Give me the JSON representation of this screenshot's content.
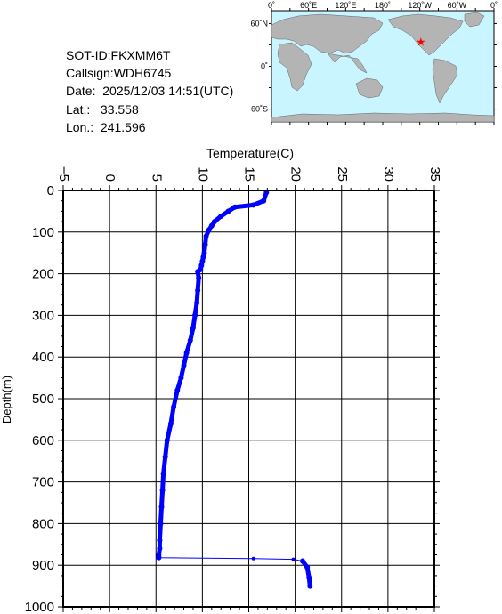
{
  "info": {
    "sot_id": "SOT-ID:FKXMM6T",
    "callsign": "Callsign:WDH6745",
    "date": "Date:  2025/12/03 14:51(UTC)",
    "lat": "Lat.:   33.558",
    "lon": "Lon.:  241.596"
  },
  "map": {
    "lon_ticks": [
      "0˚",
      "60˚E",
      "120˚E",
      "180˚",
      "120˚W",
      "60˚W",
      "0˚"
    ],
    "lat_ticks": [
      "60˚N",
      "0˚",
      "60˚S"
    ],
    "ocean_color": "#c8f5ff",
    "land_color": "#b4b4b4",
    "marker_color": "#ff0000",
    "marker_lat": 33.558,
    "marker_lon": 241.596
  },
  "chart_data": {
    "type": "line",
    "title": "",
    "xlabel": "Temperature(C)",
    "ylabel": "Depth(m)",
    "xlim": [
      -5,
      35
    ],
    "ylim": [
      1000,
      0
    ],
    "x_ticks": [
      -5,
      0,
      5,
      10,
      15,
      20,
      25,
      30,
      35
    ],
    "y_ticks": [
      0,
      100,
      200,
      300,
      400,
      500,
      600,
      700,
      800,
      900,
      1000
    ],
    "grid": true,
    "line_color": "#0000ff",
    "series": [
      {
        "x": [
          16.9,
          16.6,
          15.5,
          13.5,
          12.8,
          12.0,
          11.3,
          11.0,
          10.7,
          10.4,
          10.3,
          10.2,
          10.1,
          10.0,
          9.9,
          9.8,
          9.5,
          9.6,
          9.5,
          9.4,
          9.2,
          9.0,
          8.7,
          8.3,
          8.0,
          7.7,
          7.3,
          6.9,
          6.6,
          6.2,
          6.0,
          5.8,
          5.7,
          5.6,
          5.5,
          5.4,
          5.4,
          5.3,
          5.3,
          5.3,
          15.5,
          19.8,
          20.8,
          21.3,
          21.5,
          21.6
        ],
        "y": [
          5,
          25,
          35,
          40,
          50,
          62,
          75,
          85,
          95,
          110,
          130,
          150,
          160,
          170,
          180,
          190,
          195,
          210,
          240,
          270,
          300,
          330,
          360,
          390,
          420,
          450,
          480,
          520,
          560,
          600,
          640,
          680,
          720,
          760,
          800,
          840,
          860,
          875,
          880,
          882,
          884,
          886,
          890,
          905,
          930,
          950
        ]
      }
    ]
  }
}
